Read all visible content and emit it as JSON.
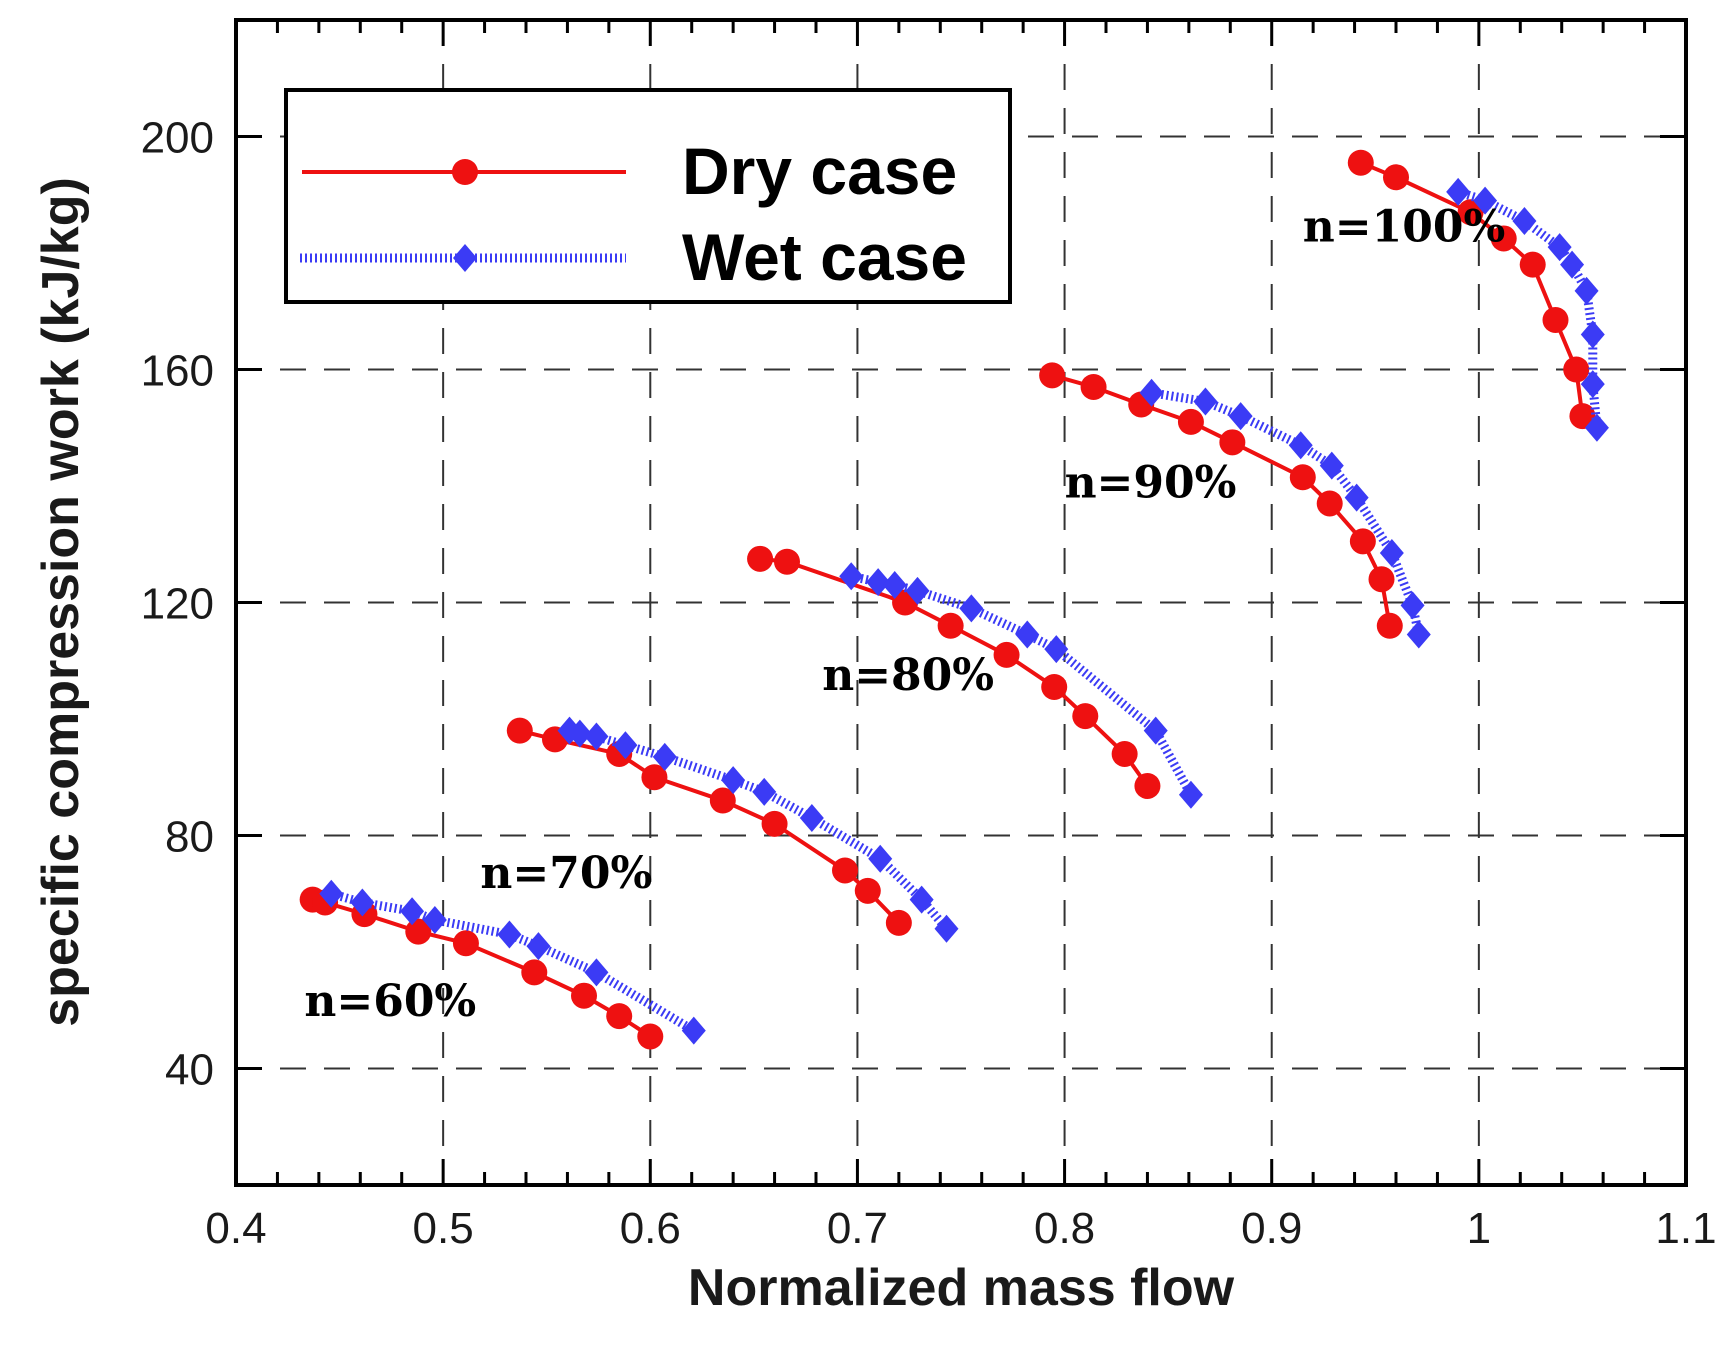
{
  "chart_data": {
    "type": "line",
    "title": "",
    "xlabel": "Normalized mass flow",
    "ylabel": "specific compression work (kJ/kg)",
    "xlim": [
      0.4,
      1.1
    ],
    "ylim": [
      20,
      220
    ],
    "xticks": [
      0.4,
      0.5,
      0.6,
      0.7,
      0.8,
      0.9,
      1,
      1.1
    ],
    "xtick_labels": [
      "0.4",
      "0.5",
      "0.6",
      "0.7",
      "0.8",
      "0.9",
      "1",
      "1.1"
    ],
    "yticks": [
      40,
      80,
      120,
      160,
      200
    ],
    "ytick_labels": [
      "40",
      "80",
      "120",
      "160",
      "200"
    ],
    "grid": true,
    "legend": {
      "position": "top-left",
      "entries": [
        {
          "label": "Dry case",
          "color": "#ee1111",
          "marker": "circle",
          "line": "solid"
        },
        {
          "label": "Wet case",
          "color": "#3b3bf5",
          "marker": "diamond",
          "line": "dotted"
        }
      ]
    },
    "series": [
      {
        "name": "Dry case",
        "speed": "n=60%",
        "x": [
          0.437,
          0.443,
          0.462,
          0.488,
          0.511,
          0.544,
          0.568,
          0.585,
          0.6
        ],
        "y": [
          69,
          68.5,
          66.5,
          63.5,
          61.5,
          56.5,
          52.5,
          49,
          45.5
        ]
      },
      {
        "name": "Wet case",
        "speed": "n=60%",
        "x": [
          0.446,
          0.461,
          0.485,
          0.496,
          0.532,
          0.546,
          0.574,
          0.621
        ],
        "y": [
          70,
          68.5,
          67,
          65.5,
          63,
          61,
          56.5,
          46.5
        ]
      },
      {
        "name": "Dry case",
        "speed": "n=70%",
        "x": [
          0.537,
          0.554,
          0.585,
          0.602,
          0.635,
          0.66,
          0.694,
          0.705,
          0.72
        ],
        "y": [
          98,
          96.5,
          94,
          90,
          86,
          82,
          74,
          70.5,
          65
        ]
      },
      {
        "name": "Wet case",
        "speed": "n=70%",
        "x": [
          0.561,
          0.566,
          0.574,
          0.588,
          0.607,
          0.64,
          0.655,
          0.678,
          0.711,
          0.731,
          0.743
        ],
        "y": [
          98,
          97.5,
          97,
          95.5,
          93.5,
          89.5,
          87.5,
          83,
          76,
          69,
          64
        ]
      },
      {
        "name": "Dry case",
        "speed": "n=80%",
        "x": [
          0.653,
          0.666,
          0.723,
          0.745,
          0.772,
          0.795,
          0.81,
          0.829,
          0.84
        ],
        "y": [
          127.5,
          127,
          120,
          116,
          111,
          105.5,
          100.5,
          94,
          88.5
        ]
      },
      {
        "name": "Wet case",
        "speed": "n=80%",
        "x": [
          0.697,
          0.71,
          0.718,
          0.729,
          0.755,
          0.782,
          0.796,
          0.844,
          0.861
        ],
        "y": [
          124.5,
          123.5,
          123,
          122,
          119,
          114.5,
          112,
          98,
          87
        ]
      },
      {
        "name": "Dry case",
        "speed": "n=90%",
        "x": [
          0.794,
          0.814,
          0.837,
          0.861,
          0.881,
          0.915,
          0.928,
          0.944,
          0.953,
          0.957
        ],
        "y": [
          159,
          157,
          154,
          151,
          147.5,
          141.5,
          137,
          130.5,
          124,
          116
        ]
      },
      {
        "name": "Wet case",
        "speed": "n=90%",
        "x": [
          0.842,
          0.868,
          0.885,
          0.914,
          0.929,
          0.941,
          0.958,
          0.968,
          0.971
        ],
        "y": [
          156,
          154.5,
          152,
          147,
          143.5,
          138,
          128.5,
          119.5,
          114.5
        ]
      },
      {
        "name": "Dry case",
        "speed": "n=100%",
        "x": [
          0.943,
          0.96,
          0.996,
          1.012,
          1.026,
          1.037,
          1.047,
          1.05
        ],
        "y": [
          195.5,
          193,
          187,
          182.5,
          178,
          168.5,
          160,
          152
        ]
      },
      {
        "name": "Wet case",
        "speed": "n=100%",
        "x": [
          0.99,
          1.003,
          1.022,
          1.039,
          1.045,
          1.052,
          1.055,
          1.055,
          1.057
        ],
        "y": [
          190.5,
          189,
          185.5,
          181,
          178,
          173.5,
          166,
          157.5,
          150
        ]
      }
    ],
    "annotations": [
      {
        "text": "n=60%",
        "x": 0.433,
        "y": 49
      },
      {
        "text": "n=70%",
        "x": 0.518,
        "y": 71
      },
      {
        "text": "n=80%",
        "x": 0.683,
        "y": 105
      },
      {
        "text": "n=90%",
        "x": 0.8,
        "y": 138
      },
      {
        "text": "n=100%",
        "x": 0.915,
        "y": 182
      }
    ]
  }
}
